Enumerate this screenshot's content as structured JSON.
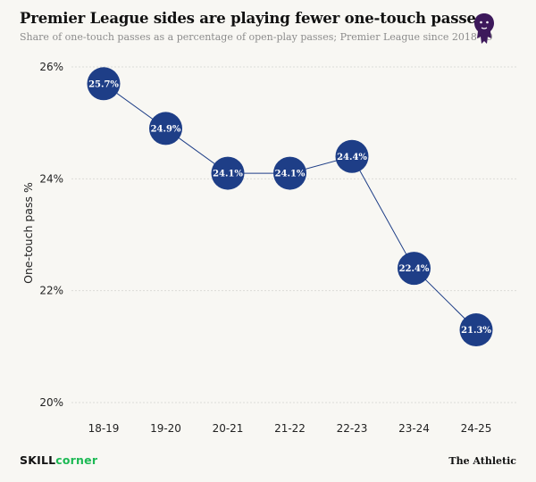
{
  "header": {
    "title": "Premier League sides are playing fewer one-touch passes",
    "subtitle": "Share of one-touch passes as a percentage of open-play passes; Premier League since 2018-19"
  },
  "footer": {
    "brand_left_1": "SKILL",
    "brand_left_2": "corner",
    "brand_right": "The Athletic"
  },
  "colors": {
    "background": "#f8f7f3",
    "marker": "#1e3e87",
    "line": "#1e3e87",
    "grid": "#dcdcd8",
    "skillcorner_green": "#1db954",
    "premier_league_purple": "#3d195b"
  },
  "icons": {
    "logo": "premier-league-lion-logo"
  },
  "chart_data": {
    "type": "line",
    "title": "Premier League sides are playing fewer one-touch passes",
    "subtitle": "Share of one-touch passes as a percentage of open-play passes; Premier League since 2018-19",
    "xlabel": "",
    "ylabel": "One-touch pass %",
    "categories": [
      "18-19",
      "19-20",
      "20-21",
      "21-22",
      "22-23",
      "23-24",
      "24-25"
    ],
    "values": [
      25.7,
      24.9,
      24.1,
      24.1,
      24.4,
      22.4,
      21.3
    ],
    "data_labels": [
      "25.7%",
      "24.9%",
      "24.1%",
      "24.1%",
      "24.4%",
      "22.4%",
      "21.3%"
    ],
    "ylim": [
      20,
      26
    ],
    "yticks": [
      20,
      22,
      24,
      26
    ],
    "ytick_labels": [
      "20%",
      "22%",
      "24%",
      "26%"
    ],
    "grid": true,
    "legend": "none"
  }
}
